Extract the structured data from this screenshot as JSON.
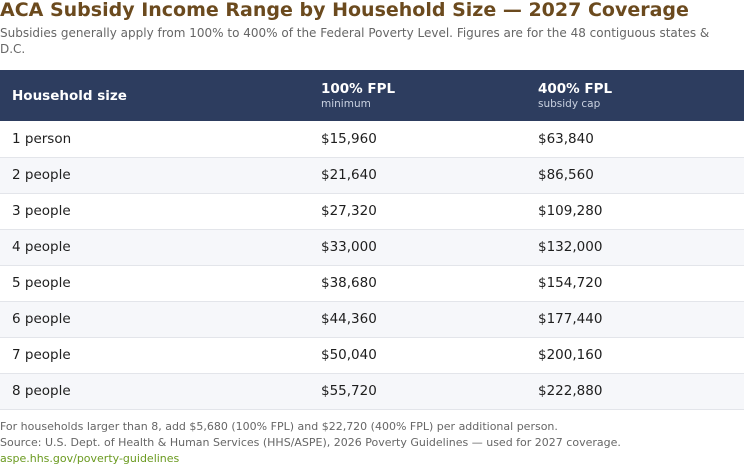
{
  "header": {
    "title": "ACA Subsidy Income Range by Household Size — 2027 Coverage",
    "subtitle": "Subsidies generally apply from 100% to 400% of the Federal Poverty Level. Figures are for the 48 contiguous states & D.C."
  },
  "table": {
    "columns": [
      {
        "label": "Household size",
        "sub": ""
      },
      {
        "label": "100% FPL",
        "sub": "minimum"
      },
      {
        "label": "400% FPL",
        "sub": "subsidy cap"
      }
    ],
    "rows": [
      [
        "1 person",
        "$15,960",
        "$63,840"
      ],
      [
        "2 people",
        "$21,640",
        "$86,560"
      ],
      [
        "3 people",
        "$27,320",
        "$109,280"
      ],
      [
        "4 people",
        "$33,000",
        "$132,000"
      ],
      [
        "5 people",
        "$38,680",
        "$154,720"
      ],
      [
        "6 people",
        "$44,360",
        "$177,440"
      ],
      [
        "7 people",
        "$50,040",
        "$200,160"
      ],
      [
        "8 people",
        "$55,720",
        "$222,880"
      ]
    ]
  },
  "footer": {
    "note": "For households larger than 8, add $5,680 (100% FPL) and $22,720 (400% FPL) per additional person.",
    "source": "Source: U.S. Dept. of Health & Human Services (HHS/ASPE), 2026 Poverty Guidelines — used for 2027 coverage.",
    "link": "aspe.hhs.gov/poverty-guidelines"
  },
  "colors": {
    "title": "#6b4a1e",
    "header_bg": "#2d3d5f",
    "link": "#6a9a1f"
  }
}
